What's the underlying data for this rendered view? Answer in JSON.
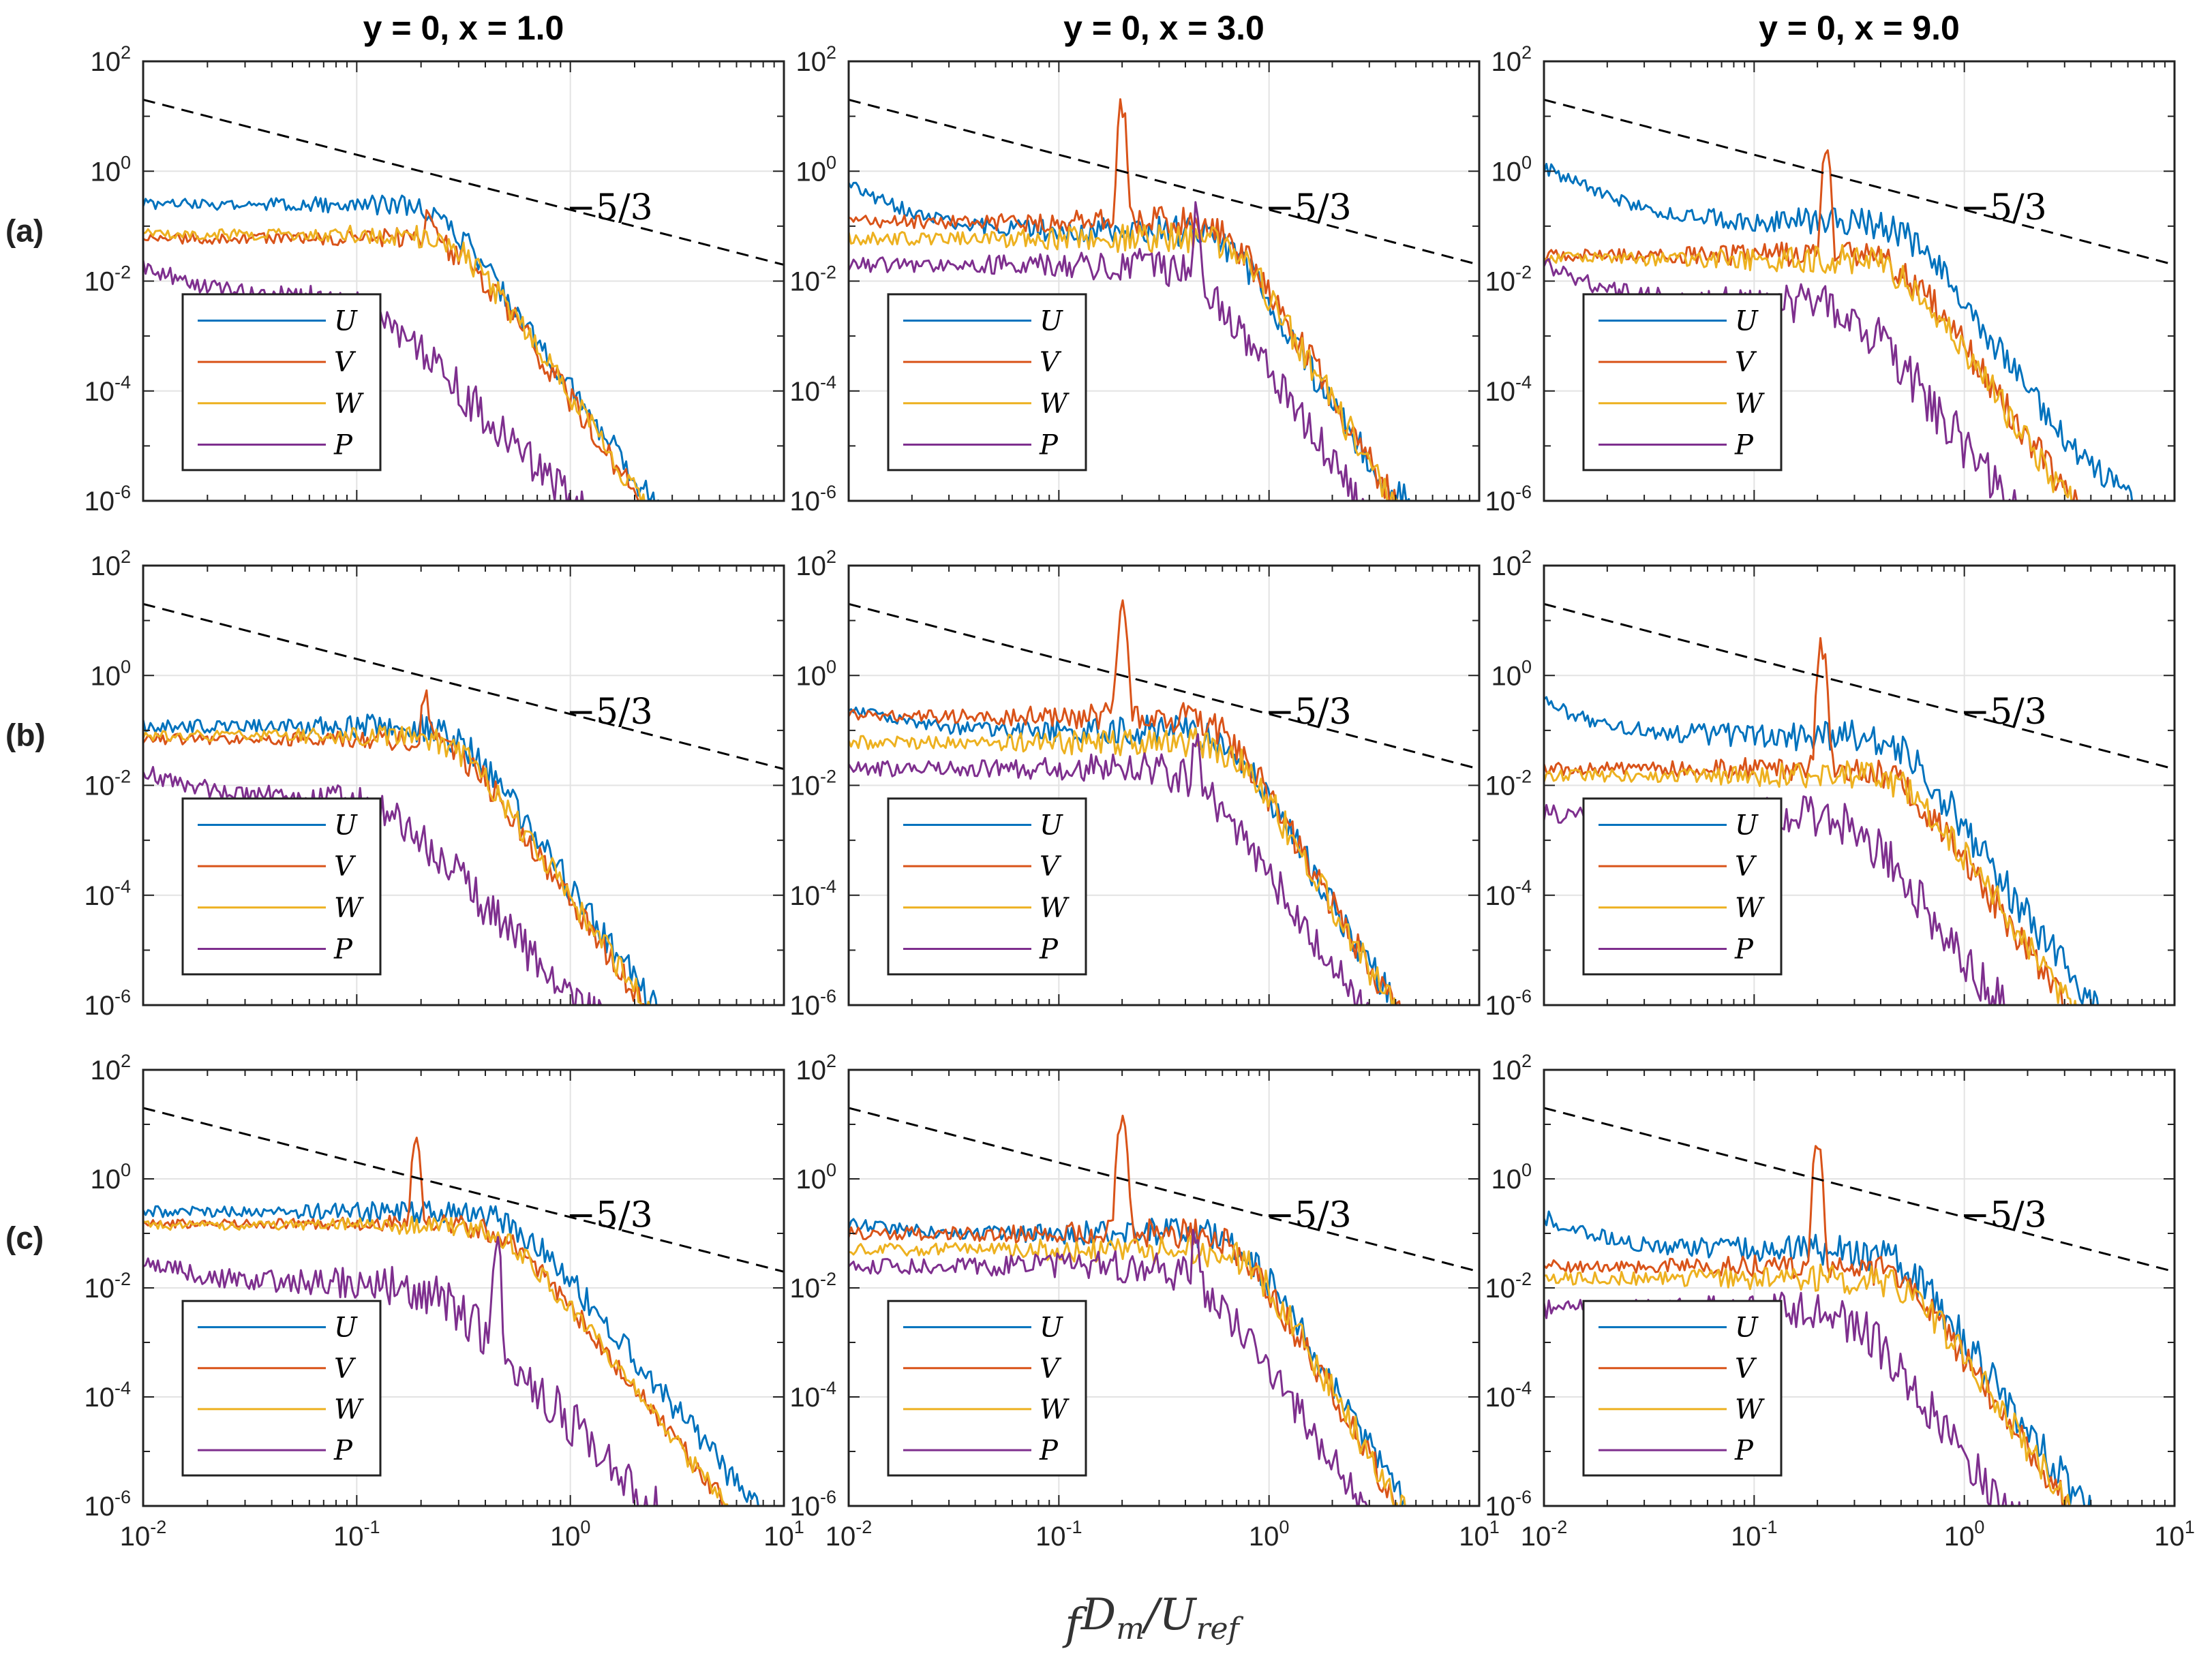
{
  "chart_data": {
    "type": "line",
    "layout": "3x3 grid of log-log spectra panels",
    "columns": [
      "y = 0, x = 1.0",
      "y = 0, x = 3.0",
      "y = 0, x = 9.0"
    ],
    "rows": [
      "(a)",
      "(b)",
      "(c)"
    ],
    "xlabel": "fD_m/U_ref",
    "xscale": "log",
    "yscale": "log",
    "xlim": [
      0.01,
      10
    ],
    "ylim": [
      1e-06,
      100
    ],
    "x_ticks": [
      {
        "base": "10",
        "exp": "-2"
      },
      {
        "base": "10",
        "exp": "-1"
      },
      {
        "base": "10",
        "exp": "0"
      },
      {
        "base": "10",
        "exp": "1"
      }
    ],
    "y_ticks": [
      {
        "base": "10",
        "exp": "2"
      },
      {
        "base": "10",
        "exp": "0"
      },
      {
        "base": "10",
        "exp": "-2"
      },
      {
        "base": "10",
        "exp": "-4"
      },
      {
        "base": "10",
        "exp": "-6"
      }
    ],
    "grid": true,
    "reference_line": {
      "label": "−5/3",
      "slope": -1.6667,
      "x": [
        0.01,
        10
      ],
      "y": [
        20,
        0.0198
      ],
      "style": "dashed"
    },
    "legend": {
      "position": "bottom-left",
      "entries": [
        "U",
        "V",
        "W",
        "P"
      ]
    },
    "series_colors": {
      "U": "#0072BD",
      "V": "#D95319",
      "W": "#EDB120",
      "P": "#7E2F8E"
    },
    "series_params": {
      "a": [
        {
          "name": "U",
          "low": 0.25,
          "fc": 0.25,
          "n": 5.5,
          "peak_f": 0,
          "peak_h": 0,
          "noise": 0.1,
          "lowrise": 0
        },
        {
          "name": "V",
          "low": 0.06,
          "fc": 0.3,
          "n": 5.6,
          "peak_f": 0.22,
          "peak_h": 0.15,
          "noise": 0.1,
          "lowrise": 0
        },
        {
          "name": "W",
          "low": 0.07,
          "fc": 0.3,
          "n": 5.6,
          "peak_f": 0,
          "peak_h": 0,
          "noise": 0.1,
          "lowrise": 0
        },
        {
          "name": "P",
          "low": 0.005,
          "fc": 0.12,
          "n": 4.2,
          "peak_f": 0,
          "peak_h": 0,
          "noise": 0.16,
          "lowrise": 1.0
        }
      ],
      "b": [
        {
          "name": "U",
          "low": 0.12,
          "fc": 0.3,
          "n": 5.6,
          "peak_f": 0,
          "peak_h": 0,
          "noise": 0.12,
          "lowrise": 0
        },
        {
          "name": "V",
          "low": 0.07,
          "fc": 0.3,
          "n": 5.6,
          "peak_f": 0.21,
          "peak_h": 0.4,
          "noise": 0.1,
          "lowrise": 0
        },
        {
          "name": "W",
          "low": 0.08,
          "fc": 0.3,
          "n": 5.6,
          "peak_f": 0,
          "peak_h": 0,
          "noise": 0.1,
          "lowrise": 0
        },
        {
          "name": "P",
          "low": 0.006,
          "fc": 0.14,
          "n": 4.4,
          "peak_f": 0,
          "peak_h": 0,
          "noise": 0.16,
          "lowrise": 0.7
        }
      ],
      "c": [
        {
          "name": "U",
          "low": 0.25,
          "fc": 0.55,
          "n": 4.8,
          "peak_f": 0,
          "peak_h": 0,
          "noise": 0.1,
          "lowrise": 0
        },
        {
          "name": "V",
          "low": 0.15,
          "fc": 0.5,
          "n": 5.0,
          "peak_f": 0.19,
          "peak_h": 5.0,
          "noise": 0.08,
          "lowrise": 0
        },
        {
          "name": "W",
          "low": 0.14,
          "fc": 0.5,
          "n": 5.0,
          "peak_f": 0,
          "peak_h": 0,
          "noise": 0.08,
          "lowrise": 0
        },
        {
          "name": "P",
          "low": 0.012,
          "fc": 0.25,
          "n": 4.2,
          "peak_f": 0.45,
          "peak_h": 0.05,
          "noise": 0.18,
          "lowrise": 0.6
        }
      ],
      "d": [
        {
          "name": "U",
          "low": 0.08,
          "fc": 0.65,
          "n": 6.5,
          "peak_f": 0,
          "peak_h": 0,
          "noise": 0.12,
          "lowrise": 2.0
        },
        {
          "name": "V",
          "low": 0.12,
          "fc": 0.65,
          "n": 6.5,
          "peak_f": 0.2,
          "peak_h": 15,
          "noise": 0.12,
          "lowrise": 0
        },
        {
          "name": "W",
          "low": 0.06,
          "fc": 0.7,
          "n": 6.5,
          "peak_f": 0,
          "peak_h": 0,
          "noise": 0.12,
          "lowrise": 0
        },
        {
          "name": "P",
          "low": 0.02,
          "fc": 0.45,
          "n": 5.5,
          "peak_f": 0.45,
          "peak_h": 0.12,
          "noise": 0.14,
          "lowrise": 0
        }
      ],
      "e": [
        {
          "name": "U",
          "low": 0.1,
          "fc": 0.65,
          "n": 6.5,
          "peak_f": 0,
          "peak_h": 0,
          "noise": 0.12,
          "lowrise": 0.5
        },
        {
          "name": "V",
          "low": 0.18,
          "fc": 0.6,
          "n": 6.5,
          "peak_f": 0.2,
          "peak_h": 18,
          "noise": 0.12,
          "lowrise": 0
        },
        {
          "name": "W",
          "low": 0.06,
          "fc": 0.7,
          "n": 6.5,
          "peak_f": 0,
          "peak_h": 0,
          "noise": 0.12,
          "lowrise": 0
        },
        {
          "name": "P",
          "low": 0.02,
          "fc": 0.45,
          "n": 5.5,
          "peak_f": 0.45,
          "peak_h": 0.08,
          "noise": 0.14,
          "lowrise": 0
        }
      ],
      "f": [
        {
          "name": "U",
          "low": 0.1,
          "fc": 0.75,
          "n": 6.5,
          "peak_f": 0,
          "peak_h": 0,
          "noise": 0.12,
          "lowrise": 0.2
        },
        {
          "name": "V",
          "low": 0.1,
          "fc": 0.7,
          "n": 6.5,
          "peak_f": 0.2,
          "peak_h": 18,
          "noise": 0.12,
          "lowrise": 0
        },
        {
          "name": "W",
          "low": 0.05,
          "fc": 0.8,
          "n": 6.5,
          "peak_f": 0,
          "peak_h": 0,
          "noise": 0.12,
          "lowrise": 0
        },
        {
          "name": "P",
          "low": 0.025,
          "fc": 0.45,
          "n": 5.5,
          "peak_f": 0.45,
          "peak_h": 0.08,
          "noise": 0.14,
          "lowrise": 0
        }
      ],
      "g": [
        {
          "name": "U",
          "low": 0.12,
          "fc": 0.55,
          "n": 5.5,
          "peak_f": 0,
          "peak_h": 0,
          "noise": 0.12,
          "lowrise": 3.0
        },
        {
          "name": "V",
          "low": 0.03,
          "fc": 0.5,
          "n": 5.5,
          "peak_f": 0.22,
          "peak_h": 3.5,
          "noise": 0.12,
          "lowrise": 0
        },
        {
          "name": "W",
          "low": 0.025,
          "fc": 0.5,
          "n": 5.5,
          "peak_f": 0,
          "peak_h": 0,
          "noise": 0.12,
          "lowrise": 0
        },
        {
          "name": "P",
          "low": 0.004,
          "fc": 0.3,
          "n": 5.0,
          "peak_f": 0,
          "peak_h": 0,
          "noise": 0.18,
          "lowrise": 1.2
        }
      ],
      "h": [
        {
          "name": "U",
          "low": 0.08,
          "fc": 0.5,
          "n": 5.5,
          "peak_f": 0,
          "peak_h": 0,
          "noise": 0.14,
          "lowrise": 1.0
        },
        {
          "name": "V",
          "low": 0.02,
          "fc": 0.5,
          "n": 5.5,
          "peak_f": 0.21,
          "peak_h": 3.5,
          "noise": 0.12,
          "lowrise": 0
        },
        {
          "name": "W",
          "low": 0.015,
          "fc": 0.55,
          "n": 5.5,
          "peak_f": 0,
          "peak_h": 0,
          "noise": 0.12,
          "lowrise": 0
        },
        {
          "name": "P",
          "low": 0.003,
          "fc": 0.3,
          "n": 5.0,
          "peak_f": 0,
          "peak_h": 0,
          "noise": 0.18,
          "lowrise": 0
        }
      ],
      "i": [
        {
          "name": "U",
          "low": 0.05,
          "fc": 0.5,
          "n": 5.5,
          "peak_f": 0,
          "peak_h": 0,
          "noise": 0.14,
          "lowrise": 1.0
        },
        {
          "name": "V",
          "low": 0.025,
          "fc": 0.5,
          "n": 5.5,
          "peak_f": 0.2,
          "peak_h": 5.0,
          "noise": 0.12,
          "lowrise": 0
        },
        {
          "name": "W",
          "low": 0.015,
          "fc": 0.55,
          "n": 5.5,
          "peak_f": 0,
          "peak_h": 0,
          "noise": 0.12,
          "lowrise": 0
        },
        {
          "name": "P",
          "low": 0.004,
          "fc": 0.3,
          "n": 5.0,
          "peak_f": 0,
          "peak_h": 0,
          "noise": 0.18,
          "lowrise": 0
        }
      ]
    }
  }
}
